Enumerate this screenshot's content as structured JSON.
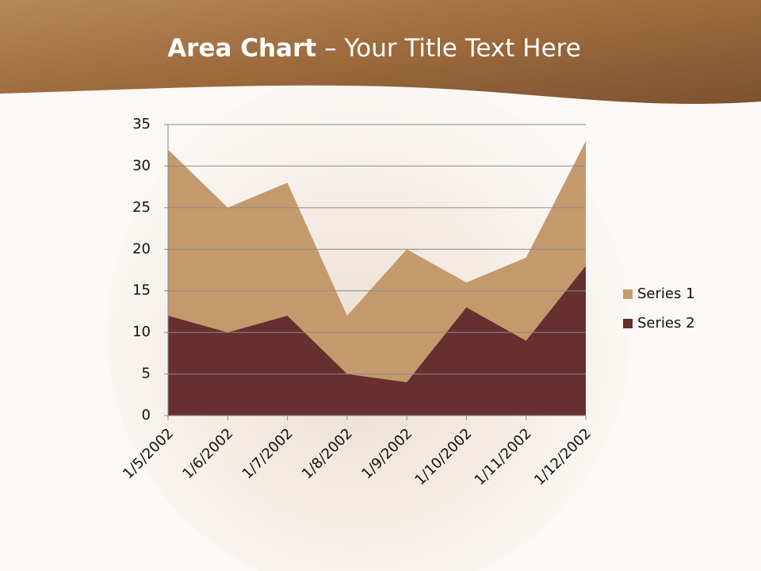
{
  "chart_data": {
    "type": "area",
    "title_bold": "Area Chart",
    "title_rest": "– Your Title Text Here",
    "categories": [
      "1/5/2002",
      "1/6/2002",
      "1/7/2002",
      "1/8/2002",
      "1/9/2002",
      "1/10/2002",
      "1/11/2002",
      "1/12/2002"
    ],
    "series": [
      {
        "name": "Series 1",
        "color": "#c49a6c",
        "values": [
          32,
          25,
          28,
          12,
          20,
          16,
          19,
          33
        ]
      },
      {
        "name": "Series 2",
        "color": "#672f30",
        "values": [
          12,
          10,
          12,
          5,
          4,
          13,
          9,
          18
        ]
      }
    ],
    "ylim": [
      0,
      35
    ],
    "yticks": [
      0,
      5,
      10,
      15,
      20,
      25,
      30,
      35
    ],
    "grid": true,
    "legend": "right"
  }
}
